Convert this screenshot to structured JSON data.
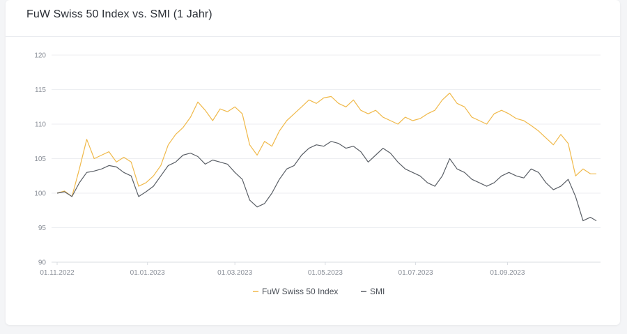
{
  "chart_data": {
    "type": "line",
    "title": "FuW Swiss 50 Index vs. SMI (1 Jahr)",
    "xlabel": "",
    "ylabel": "",
    "ylim": [
      90,
      120
    ],
    "y_ticks": [
      120,
      115,
      110,
      105,
      100,
      95,
      90
    ],
    "x_ticks": [
      "01.11.2022",
      "01.01.2023",
      "01.03.2023",
      "01.05.2023",
      "01.07.2023",
      "01.09.2023"
    ],
    "grid": "horizontal",
    "legend_position": "bottom-center",
    "x_dates": [
      "01.11.2022",
      "06.11.2022",
      "11.11.2022",
      "16.11.2022",
      "21.11.2022",
      "26.11.2022",
      "01.12.2022",
      "06.12.2022",
      "11.12.2022",
      "16.12.2022",
      "21.12.2022",
      "26.12.2022",
      "31.12.2022",
      "05.01.2023",
      "10.01.2023",
      "15.01.2023",
      "20.01.2023",
      "25.01.2023",
      "30.01.2023",
      "04.02.2023",
      "09.02.2023",
      "14.02.2023",
      "19.02.2023",
      "24.02.2023",
      "01.03.2023",
      "06.03.2023",
      "11.03.2023",
      "16.03.2023",
      "21.03.2023",
      "26.03.2023",
      "31.03.2023",
      "05.04.2023",
      "10.04.2023",
      "15.04.2023",
      "20.04.2023",
      "25.04.2023",
      "30.04.2023",
      "05.05.2023",
      "10.05.2023",
      "15.05.2023",
      "20.05.2023",
      "25.05.2023",
      "30.05.2023",
      "04.06.2023",
      "09.06.2023",
      "14.06.2023",
      "19.06.2023",
      "24.06.2023",
      "29.06.2023",
      "04.07.2023",
      "09.07.2023",
      "14.07.2023",
      "19.07.2023",
      "24.07.2023",
      "29.07.2023",
      "03.08.2023",
      "08.08.2023",
      "13.08.2023",
      "18.08.2023",
      "23.08.2023",
      "28.08.2023",
      "02.09.2023",
      "07.09.2023",
      "12.09.2023",
      "17.09.2023",
      "22.09.2023",
      "27.09.2023",
      "02.10.2023",
      "07.10.2023",
      "12.10.2023",
      "17.10.2023",
      "22.10.2023",
      "27.10.2023",
      "31.10.2023"
    ],
    "series": [
      {
        "name": "FuW Swiss 50 Index",
        "color": "#f0b94a",
        "values": [
          100,
          100.3,
          99.5,
          103.5,
          107.8,
          105,
          105.5,
          106,
          104.5,
          105.2,
          104.5,
          101,
          101.5,
          102.5,
          104,
          107,
          108.5,
          109.5,
          111,
          113.2,
          112,
          110.5,
          112.2,
          111.8,
          112.5,
          111.5,
          107,
          105.5,
          107.5,
          106.8,
          109,
          110.5,
          111.5,
          112.5,
          113.5,
          113,
          113.8,
          114,
          113,
          112.5,
          113.5,
          112,
          111.5,
          112,
          111,
          110.5,
          110,
          111,
          110.5,
          110.8,
          111.5,
          112,
          113.5,
          114.5,
          113,
          112.5,
          111,
          110.5,
          110,
          111.5,
          112,
          111.5,
          110.8,
          110.5,
          109.8,
          109,
          108,
          107,
          108.5,
          107.2,
          102.5,
          103.5,
          102.8,
          102.8
        ]
      },
      {
        "name": "SMI",
        "color": "#5a5f66",
        "values": [
          100,
          100.2,
          99.5,
          101.5,
          103,
          103.2,
          103.5,
          104,
          103.8,
          103,
          102.5,
          99.5,
          100.2,
          101,
          102.5,
          104,
          104.5,
          105.5,
          105.8,
          105.3,
          104.2,
          104.8,
          104.5,
          104.2,
          103,
          102,
          99,
          98,
          98.5,
          100,
          102,
          103.5,
          104,
          105.5,
          106.5,
          107,
          106.8,
          107.5,
          107.2,
          106.5,
          106.8,
          106,
          104.5,
          105.5,
          106.5,
          105.8,
          104.5,
          103.5,
          103,
          102.5,
          101.5,
          101,
          102.5,
          105,
          103.5,
          103,
          102,
          101.5,
          101,
          101.5,
          102.5,
          103,
          102.5,
          102.2,
          103.5,
          103,
          101.5,
          100.5,
          101,
          102,
          99.5,
          96,
          96.5,
          96
        ]
      }
    ]
  }
}
